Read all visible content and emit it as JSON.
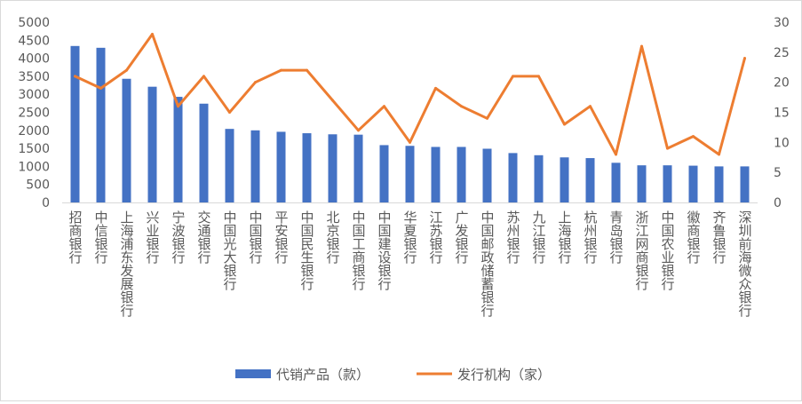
{
  "chart_data": {
    "type": "bar",
    "categories": [
      "招商银行",
      "中信银行",
      "上海浦东发展银行",
      "兴业银行",
      "宁波银行",
      "交通银行",
      "中国光大银行",
      "中国银行",
      "平安银行",
      "中国民生银行",
      "北京银行",
      "中国工商银行",
      "中国建设银行",
      "华夏银行",
      "江苏银行",
      "广发银行",
      "中国邮政储蓄银行",
      "苏州银行",
      "九江银行",
      "上海银行",
      "杭州银行",
      "青岛银行",
      "浙江网商银行",
      "中国农业银行",
      "徽商银行",
      "齐鲁银行",
      "深圳前海微众银行"
    ],
    "series": [
      {
        "name": "代销产品（款）",
        "type": "bar",
        "axis": "left",
        "color": "#4472C4",
        "values": [
          4340,
          4290,
          3430,
          3210,
          2930,
          2740,
          2040,
          2000,
          1960,
          1920,
          1890,
          1880,
          1590,
          1570,
          1540,
          1540,
          1490,
          1370,
          1310,
          1250,
          1230,
          1100,
          1030,
          1030,
          1020,
          1000,
          1000
        ]
      },
      {
        "name": "发行机构（家）",
        "type": "line",
        "axis": "right",
        "color": "#ED7D31",
        "values": [
          21,
          19,
          22,
          28,
          16,
          21,
          15,
          20,
          22,
          22,
          17,
          12,
          16,
          10,
          19,
          16,
          14,
          21,
          21,
          13,
          16,
          8,
          26,
          9,
          11,
          8,
          24
        ]
      }
    ],
    "left_axis": {
      "ylim": [
        0,
        5000
      ],
      "ticks": [
        "0",
        "500",
        "1000",
        "1500",
        "2000",
        "2500",
        "3000",
        "3500",
        "4000",
        "4500",
        "5000"
      ]
    },
    "right_axis": {
      "ylim": [
        0,
        30
      ],
      "ticks": [
        "0",
        "5",
        "10",
        "15",
        "20",
        "25",
        "30"
      ]
    },
    "grid": false,
    "legend": "bottom"
  }
}
